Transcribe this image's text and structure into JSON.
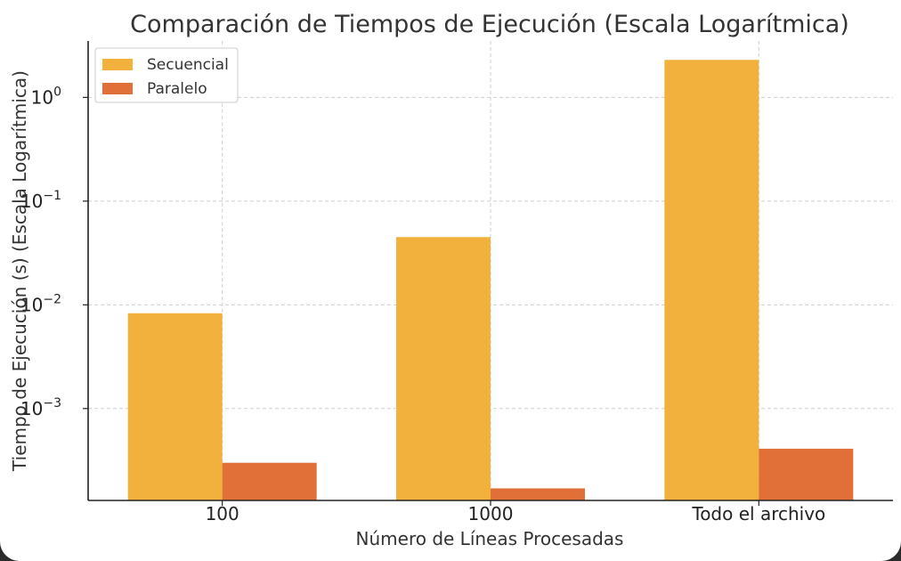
{
  "chart_data": {
    "type": "bar",
    "title": "Comparación de Tiempos de Ejecución (Escala Logarítmica)",
    "xlabel": "Número de Líneas Procesadas",
    "ylabel": "Tiempo de Ejecución (s) (Escala Logarítmica)",
    "yscale": "log",
    "ylim": [
      0.00013,
      3.5
    ],
    "categories": [
      "100",
      "1000",
      "Todo el archivo"
    ],
    "series": [
      {
        "name": "Secuencial",
        "color": "#f2b13c",
        "values": [
          0.0083,
          0.045,
          2.3
        ]
      },
      {
        "name": "Paralelo",
        "color": "#e07038",
        "values": [
          0.0003,
          0.00017,
          0.00041
        ]
      }
    ],
    "yticks": [
      {
        "value": 1,
        "base": "10",
        "exp": "0"
      },
      {
        "value": 0.1,
        "base": "10",
        "exp": "−1"
      },
      {
        "value": 0.01,
        "base": "10",
        "exp": "−2"
      },
      {
        "value": 0.001,
        "base": "10",
        "exp": "−3"
      }
    ],
    "grid": true,
    "legend_position": "top-left"
  }
}
